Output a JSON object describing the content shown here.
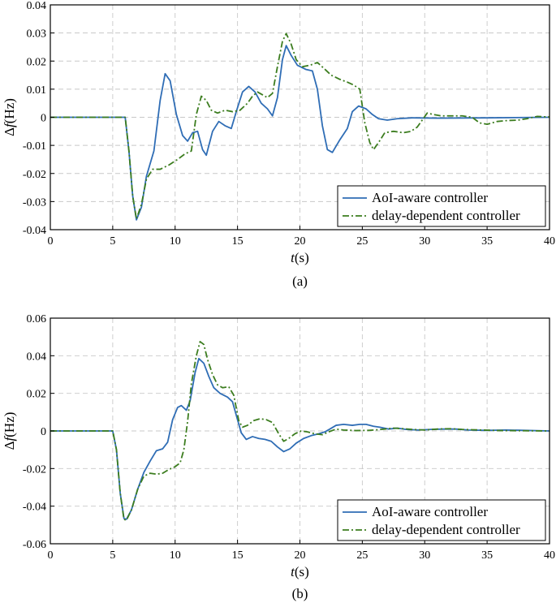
{
  "figure": {
    "panel_a_caption": "(a)",
    "panel_b_caption": "(b)"
  },
  "chart_data": [
    {
      "type": "line",
      "panel": "(a)",
      "xlabel": "t(s)",
      "ylabel": "Δf(Hz)",
      "xlim": [
        0,
        40
      ],
      "ylim": [
        -0.04,
        0.04
      ],
      "xticks": [
        "0",
        "5",
        "10",
        "15",
        "20",
        "25",
        "30",
        "35",
        "40"
      ],
      "yticks": [
        "-0.04",
        "-0.03",
        "-0.02",
        "-0.01",
        "0",
        "0.01",
        "0.02",
        "0.03",
        "0.04"
      ],
      "grid": true,
      "legend_position": "bottom-right",
      "series": [
        {
          "name": "AoI-aware controller",
          "color": "#2f6db5",
          "style": "solid",
          "points": [
            [
              0,
              0
            ],
            [
              6,
              0
            ],
            [
              6.3,
              -0.012
            ],
            [
              6.6,
              -0.028
            ],
            [
              6.9,
              -0.0365
            ],
            [
              7.3,
              -0.032
            ],
            [
              7.7,
              -0.021
            ],
            [
              8.3,
              -0.012
            ],
            [
              8.8,
              0.006
            ],
            [
              9.2,
              0.0155
            ],
            [
              9.6,
              0.013
            ],
            [
              10.1,
              0.001
            ],
            [
              10.6,
              -0.0065
            ],
            [
              11,
              -0.0085
            ],
            [
              11.4,
              -0.0055
            ],
            [
              11.8,
              -0.005
            ],
            [
              12.2,
              -0.0115
            ],
            [
              12.5,
              -0.0135
            ],
            [
              13,
              -0.005
            ],
            [
              13.5,
              -0.0015
            ],
            [
              14,
              -0.003
            ],
            [
              14.5,
              -0.004
            ],
            [
              14.9,
              0.002
            ],
            [
              15.4,
              0.009
            ],
            [
              15.9,
              0.011
            ],
            [
              16.4,
              0.009
            ],
            [
              16.9,
              0.005
            ],
            [
              17.4,
              0.003
            ],
            [
              17.8,
              0.0005
            ],
            [
              18.2,
              0.007
            ],
            [
              18.6,
              0.0205
            ],
            [
              18.9,
              0.0255
            ],
            [
              19.3,
              0.022
            ],
            [
              19.8,
              0.0185
            ],
            [
              20.5,
              0.017
            ],
            [
              21,
              0.0165
            ],
            [
              21.4,
              0.01
            ],
            [
              21.8,
              -0.003
            ],
            [
              22.2,
              -0.0115
            ],
            [
              22.6,
              -0.0125
            ],
            [
              23.2,
              -0.008
            ],
            [
              23.8,
              -0.004
            ],
            [
              24.2,
              0.002
            ],
            [
              24.7,
              0.004
            ],
            [
              25.3,
              0.003
            ],
            [
              25.8,
              0.001
            ],
            [
              26.3,
              -0.0005
            ],
            [
              27,
              -0.001
            ],
            [
              27.8,
              -0.0005
            ],
            [
              29,
              -0.0002
            ],
            [
              31,
              -0.0003
            ],
            [
              35,
              -0.0002
            ],
            [
              40,
              0
            ]
          ]
        },
        {
          "name": "delay-dependent controller",
          "color": "#3c7d1f",
          "style": "dashdot",
          "points": [
            [
              0,
              0
            ],
            [
              6,
              0
            ],
            [
              6.3,
              -0.012
            ],
            [
              6.6,
              -0.028
            ],
            [
              6.9,
              -0.0362
            ],
            [
              7.3,
              -0.031
            ],
            [
              7.7,
              -0.022
            ],
            [
              8.2,
              -0.0185
            ],
            [
              8.8,
              -0.0185
            ],
            [
              9.5,
              -0.017
            ],
            [
              10.2,
              -0.015
            ],
            [
              10.8,
              -0.013
            ],
            [
              11.3,
              -0.012
            ],
            [
              11.7,
              0.001
            ],
            [
              12.1,
              0.0075
            ],
            [
              12.5,
              0.006
            ],
            [
              12.9,
              0.0025
            ],
            [
              13.4,
              0.0015
            ],
            [
              14,
              0.0025
            ],
            [
              14.6,
              0.002
            ],
            [
              15.2,
              0.0025
            ],
            [
              15.8,
              0.005
            ],
            [
              16.2,
              0.0075
            ],
            [
              16.6,
              0.009
            ],
            [
              17,
              0.008
            ],
            [
              17.4,
              0.007
            ],
            [
              17.8,
              0.0085
            ],
            [
              18.2,
              0.018
            ],
            [
              18.6,
              0.027
            ],
            [
              18.9,
              0.0298
            ],
            [
              19.3,
              0.026
            ],
            [
              19.7,
              0.0205
            ],
            [
              20.2,
              0.018
            ],
            [
              20.8,
              0.0185
            ],
            [
              21.4,
              0.0195
            ],
            [
              21.9,
              0.0175
            ],
            [
              22.5,
              0.015
            ],
            [
              23.2,
              0.0135
            ],
            [
              23.8,
              0.0125
            ],
            [
              24.3,
              0.0115
            ],
            [
              24.8,
              0.01
            ],
            [
              25.2,
              -0.002
            ],
            [
              25.6,
              -0.009
            ],
            [
              25.9,
              -0.0115
            ],
            [
              26.3,
              -0.009
            ],
            [
              26.8,
              -0.0055
            ],
            [
              27.5,
              -0.005
            ],
            [
              28.3,
              -0.0055
            ],
            [
              28.9,
              -0.005
            ],
            [
              29.4,
              -0.0035
            ],
            [
              29.8,
              -0.001
            ],
            [
              30.2,
              0.0015
            ],
            [
              30.7,
              0.001
            ],
            [
              31.3,
              0.0005
            ],
            [
              32,
              0.0005
            ],
            [
              33,
              0.0005
            ],
            [
              33.8,
              0
            ],
            [
              34.4,
              -0.002
            ],
            [
              35,
              -0.0025
            ],
            [
              35.8,
              -0.0015
            ],
            [
              36.5,
              -0.0012
            ],
            [
              37.5,
              -0.001
            ],
            [
              38.2,
              -0.0005
            ],
            [
              39,
              0.0003
            ],
            [
              40,
              0.0001
            ]
          ]
        }
      ]
    },
    {
      "type": "line",
      "panel": "(b)",
      "xlabel": "t(s)",
      "ylabel": "Δf(Hz)",
      "xlim": [
        0,
        40
      ],
      "ylim": [
        -0.06,
        0.06
      ],
      "xticks": [
        "0",
        "5",
        "10",
        "15",
        "20",
        "25",
        "30",
        "35",
        "40"
      ],
      "yticks": [
        "-0.06",
        "-0.04",
        "-0.02",
        "0",
        "0.02",
        "0.04",
        "0.06"
      ],
      "grid": true,
      "legend_position": "bottom-right",
      "series": [
        {
          "name": "AoI-aware controller",
          "color": "#2f6db5",
          "style": "solid",
          "points": [
            [
              0,
              0
            ],
            [
              5,
              0
            ],
            [
              5.3,
              -0.01
            ],
            [
              5.6,
              -0.033
            ],
            [
              5.9,
              -0.0465
            ],
            [
              6.1,
              -0.047
            ],
            [
              6.5,
              -0.042
            ],
            [
              7,
              -0.031
            ],
            [
              7.5,
              -0.022
            ],
            [
              8,
              -0.016
            ],
            [
              8.5,
              -0.0105
            ],
            [
              9,
              -0.0095
            ],
            [
              9.4,
              -0.006
            ],
            [
              9.8,
              0.006
            ],
            [
              10.2,
              0.0125
            ],
            [
              10.5,
              0.0135
            ],
            [
              10.9,
              0.011
            ],
            [
              11.2,
              0.016
            ],
            [
              11.6,
              0.031
            ],
            [
              11.9,
              0.0385
            ],
            [
              12.3,
              0.036
            ],
            [
              12.7,
              0.029
            ],
            [
              13.1,
              0.023
            ],
            [
              13.6,
              0.02
            ],
            [
              14.2,
              0.018
            ],
            [
              14.6,
              0.0155
            ],
            [
              15,
              0.006
            ],
            [
              15.3,
              -0.001
            ],
            [
              15.7,
              -0.0045
            ],
            [
              16.2,
              -0.003
            ],
            [
              16.7,
              -0.004
            ],
            [
              17.2,
              -0.0045
            ],
            [
              17.7,
              -0.0055
            ],
            [
              18.2,
              -0.0085
            ],
            [
              18.7,
              -0.011
            ],
            [
              19.2,
              -0.0095
            ],
            [
              19.7,
              -0.0065
            ],
            [
              20.3,
              -0.004
            ],
            [
              20.9,
              -0.0025
            ],
            [
              21.5,
              -0.0015
            ],
            [
              22,
              -0.0005
            ],
            [
              22.4,
              0.001
            ],
            [
              22.9,
              0.003
            ],
            [
              23.5,
              0.0035
            ],
            [
              24.2,
              0.003
            ],
            [
              24.8,
              0.0035
            ],
            [
              25.3,
              0.0035
            ],
            [
              25.9,
              0.0025
            ],
            [
              26.4,
              0.002
            ],
            [
              27.1,
              0.001
            ],
            [
              27.8,
              0.0015
            ],
            [
              28.5,
              0.0008
            ],
            [
              29.5,
              0.0005
            ],
            [
              30.5,
              0.0008
            ],
            [
              31.5,
              0.001
            ],
            [
              32.5,
              0.001
            ],
            [
              33.5,
              0.0005
            ],
            [
              35,
              0.0003
            ],
            [
              36.5,
              0.0005
            ],
            [
              38,
              0.0003
            ],
            [
              40,
              0
            ]
          ]
        },
        {
          "name": "delay-dependent controller",
          "color": "#3c7d1f",
          "style": "dashdot",
          "points": [
            [
              0,
              0
            ],
            [
              5,
              0
            ],
            [
              5.3,
              -0.01
            ],
            [
              5.6,
              -0.033
            ],
            [
              5.9,
              -0.047
            ],
            [
              6.1,
              -0.0475
            ],
            [
              6.5,
              -0.042
            ],
            [
              7,
              -0.031
            ],
            [
              7.5,
              -0.024
            ],
            [
              8,
              -0.0225
            ],
            [
              8.5,
              -0.023
            ],
            [
              9,
              -0.0225
            ],
            [
              9.5,
              -0.0205
            ],
            [
              10,
              -0.019
            ],
            [
              10.4,
              -0.017
            ],
            [
              10.7,
              -0.01
            ],
            [
              11,
              0.005
            ],
            [
              11.3,
              0.025
            ],
            [
              11.7,
              0.04
            ],
            [
              12,
              0.0475
            ],
            [
              12.3,
              0.046
            ],
            [
              12.6,
              0.038
            ],
            [
              13,
              0.03
            ],
            [
              13.4,
              0.0245
            ],
            [
              13.8,
              0.023
            ],
            [
              14.3,
              0.0235
            ],
            [
              14.7,
              0.019
            ],
            [
              15.1,
              0.0055
            ],
            [
              15.4,
              0.002
            ],
            [
              15.8,
              0.003
            ],
            [
              16.3,
              0.0055
            ],
            [
              16.8,
              0.0065
            ],
            [
              17.3,
              0.006
            ],
            [
              17.8,
              0.0045
            ],
            [
              18.3,
              -0.0015
            ],
            [
              18.7,
              -0.0055
            ],
            [
              19.1,
              -0.004
            ],
            [
              19.6,
              -0.0015
            ],
            [
              20.1,
              0
            ],
            [
              20.6,
              -0.0005
            ],
            [
              21.2,
              -0.0015
            ],
            [
              21.8,
              -0.002
            ],
            [
              22.3,
              -0.0005
            ],
            [
              22.9,
              0.001
            ],
            [
              23.5,
              0.0005
            ],
            [
              24.5,
              0.0002
            ],
            [
              25.5,
              0.0003
            ],
            [
              26.5,
              0.0008
            ],
            [
              27.5,
              0.0015
            ],
            [
              28.3,
              0.0012
            ],
            [
              29,
              0.0008
            ],
            [
              30,
              0.0005
            ],
            [
              31,
              0.001
            ],
            [
              32,
              0.0012
            ],
            [
              33,
              0.0008
            ],
            [
              34.5,
              0.0005
            ],
            [
              36,
              0.0002
            ],
            [
              38,
              0.0001
            ],
            [
              40,
              0
            ]
          ]
        }
      ]
    }
  ]
}
